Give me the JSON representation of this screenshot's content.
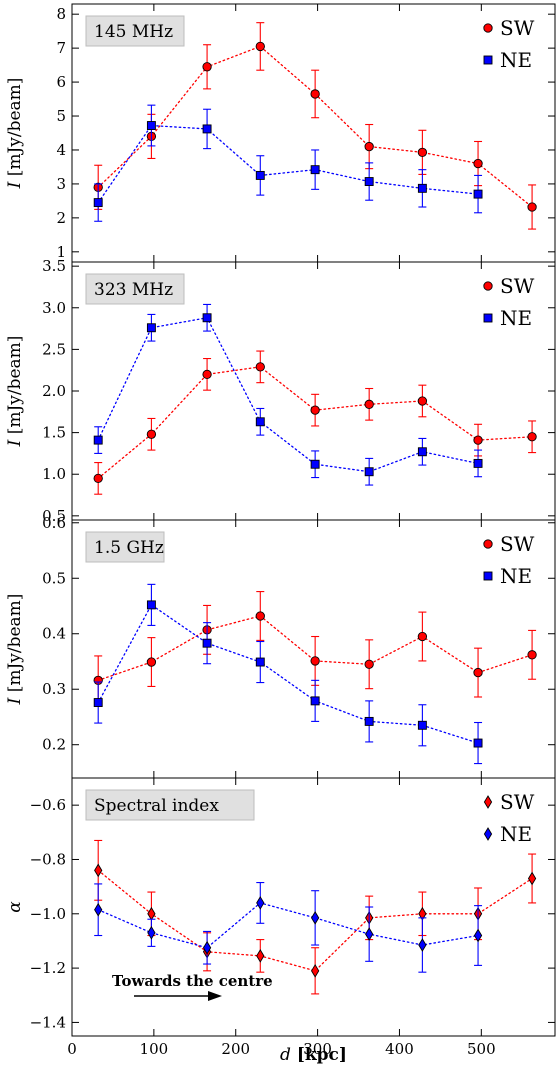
{
  "chart_data": [
    {
      "type": "scatter",
      "title": "145 MHz",
      "ylabel": "I [mJy/beam]",
      "ylabel_italic": "I",
      "ylabel_rest": " [mJy/beam]",
      "ylim": [
        0.7,
        8.3
      ],
      "yticks": [
        1,
        2,
        3,
        4,
        5,
        6,
        7,
        8
      ],
      "ytick_labels": [
        "1",
        "2",
        "3",
        "4",
        "5",
        "6",
        "7",
        "8"
      ],
      "series": [
        {
          "name": "SW",
          "color": "#ff0000",
          "marker": "circle",
          "x": [
            32,
            97,
            165,
            230,
            297,
            363,
            428,
            496,
            562
          ],
          "y": [
            2.9,
            4.4,
            6.45,
            7.05,
            5.65,
            4.1,
            3.93,
            3.6,
            2.32
          ],
          "err": [
            0.65,
            0.65,
            0.65,
            0.7,
            0.7,
            0.65,
            0.65,
            0.65,
            0.65
          ]
        },
        {
          "name": "NE",
          "color": "#0000ff",
          "marker": "square",
          "x": [
            32,
            97,
            165,
            230,
            297,
            363,
            428,
            496
          ],
          "y": [
            2.45,
            4.72,
            4.62,
            3.25,
            3.42,
            3.07,
            2.87,
            2.7
          ],
          "err": [
            0.55,
            0.6,
            0.58,
            0.58,
            0.58,
            0.55,
            0.55,
            0.55
          ]
        }
      ]
    },
    {
      "type": "scatter",
      "title": "323 MHz",
      "ylabel": "I [mJy/beam]",
      "ylabel_italic": "I",
      "ylabel_rest": " [mJy/beam]",
      "ylim": [
        0.45,
        3.55
      ],
      "yticks": [
        0.5,
        1.0,
        1.5,
        2.0,
        2.5,
        3.0,
        3.5
      ],
      "ytick_labels": [
        "0.5",
        "1.0",
        "1.5",
        "2.0",
        "2.5",
        "3.0",
        "3.5"
      ],
      "series": [
        {
          "name": "SW",
          "color": "#ff0000",
          "marker": "circle",
          "x": [
            32,
            97,
            165,
            230,
            297,
            363,
            428,
            496,
            562
          ],
          "y": [
            0.95,
            1.48,
            2.2,
            2.29,
            1.77,
            1.84,
            1.88,
            1.41,
            1.45
          ],
          "err": [
            0.19,
            0.19,
            0.19,
            0.19,
            0.19,
            0.19,
            0.19,
            0.19,
            0.19
          ]
        },
        {
          "name": "NE",
          "color": "#0000ff",
          "marker": "square",
          "x": [
            32,
            97,
            165,
            230,
            297,
            363,
            428,
            496
          ],
          "y": [
            1.41,
            2.76,
            2.88,
            1.63,
            1.12,
            1.03,
            1.27,
            1.13
          ],
          "err": [
            0.16,
            0.16,
            0.16,
            0.16,
            0.16,
            0.16,
            0.16,
            0.16
          ]
        }
      ]
    },
    {
      "type": "scatter",
      "title": "1.5 GHz",
      "ylabel": "I [mJy/beam]",
      "ylabel_italic": "I",
      "ylabel_rest": " [mJy/beam]",
      "ylim": [
        0.14,
        0.605
      ],
      "yticks": [
        0.2,
        0.3,
        0.4,
        0.5,
        0.6
      ],
      "ytick_labels": [
        "0.2",
        "0.3",
        "0.4",
        "0.5",
        "0.6"
      ],
      "series": [
        {
          "name": "SW",
          "color": "#ff0000",
          "marker": "circle",
          "x": [
            32,
            97,
            165,
            230,
            297,
            363,
            428,
            496,
            562
          ],
          "y": [
            0.316,
            0.349,
            0.407,
            0.432,
            0.351,
            0.345,
            0.395,
            0.33,
            0.362
          ],
          "err": [
            0.044,
            0.044,
            0.044,
            0.044,
            0.044,
            0.044,
            0.044,
            0.044,
            0.044
          ]
        },
        {
          "name": "NE",
          "color": "#0000ff",
          "marker": "square",
          "x": [
            32,
            97,
            165,
            230,
            297,
            363,
            428,
            496
          ],
          "y": [
            0.276,
            0.452,
            0.383,
            0.349,
            0.279,
            0.242,
            0.235,
            0.203
          ],
          "err": [
            0.037,
            0.037,
            0.037,
            0.037,
            0.037,
            0.037,
            0.037,
            0.037
          ]
        }
      ]
    },
    {
      "type": "scatter",
      "title": "Spectral index",
      "ylabel": "α",
      "ylabel_italic": "α",
      "ylabel_rest": "",
      "ylim": [
        -1.45,
        -0.5
      ],
      "yticks": [
        -1.4,
        -1.2,
        -1.0,
        -0.8,
        -0.6
      ],
      "ytick_labels": [
        "−1.4",
        "−1.2",
        "−1.0",
        "−0.8",
        "−0.6"
      ],
      "xlabel": "d [kpc]",
      "xlabel_italic": "d",
      "xlabel_rest": " [kpc]",
      "xlim": [
        0,
        590
      ],
      "xticks": [
        0,
        100,
        200,
        300,
        400,
        500
      ],
      "xtick_labels": [
        "0",
        "100",
        "200",
        "300",
        "400",
        "500"
      ],
      "annotation": "Towards the centre",
      "series": [
        {
          "name": "SW",
          "color": "#ff0000",
          "marker": "diamond",
          "x": [
            32,
            97,
            165,
            230,
            297,
            363,
            428,
            496,
            562
          ],
          "y": [
            -0.84,
            -1.0,
            -1.14,
            -1.155,
            -1.21,
            -1.015,
            -1.0,
            -1.0,
            -0.87
          ],
          "err": [
            0.11,
            0.08,
            0.07,
            0.06,
            0.085,
            0.08,
            0.08,
            0.095,
            0.09
          ]
        },
        {
          "name": "NE",
          "color": "#0000ff",
          "marker": "diamond",
          "x": [
            32,
            97,
            165,
            230,
            297,
            363,
            428,
            496
          ],
          "y": [
            -0.985,
            -1.07,
            -1.125,
            -0.96,
            -1.015,
            -1.075,
            -1.115,
            -1.08
          ],
          "err": [
            0.095,
            0.05,
            0.06,
            0.075,
            0.1,
            0.1,
            0.1,
            0.11
          ]
        }
      ]
    }
  ]
}
